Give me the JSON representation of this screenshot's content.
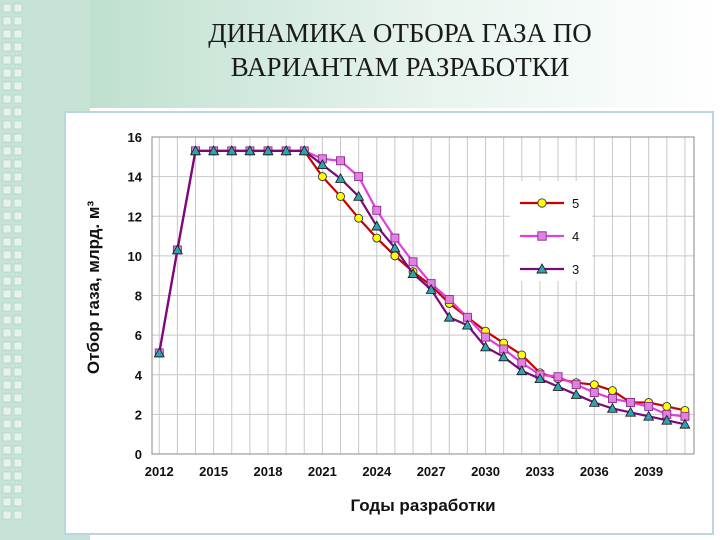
{
  "slide": {
    "title_line1": "ДИНАМИКА ОТБОРА ГАЗА ПО",
    "title_line2": "ВАРИАНТАМ РАЗРАБОТКИ"
  },
  "chart_data": {
    "type": "line",
    "title": "",
    "xlabel": "Годы разработки",
    "ylabel": "Отбор газа, млрд. м³",
    "xlim": [
      2011.6,
      2041.5
    ],
    "ylim": [
      0,
      16
    ],
    "xticks": [
      2012,
      2015,
      2018,
      2021,
      2024,
      2027,
      2030,
      2033,
      2036,
      2039
    ],
    "yticks": [
      0,
      2,
      4,
      6,
      8,
      10,
      12,
      14,
      16
    ],
    "grid": true,
    "legend_position": "top-right",
    "series": [
      {
        "name": "5",
        "color": "#cc0000",
        "marker": "circle",
        "marker_fill": "#ffff00",
        "x": [
          2012,
          2013,
          2014,
          2015,
          2016,
          2017,
          2018,
          2019,
          2020,
          2021,
          2022,
          2023,
          2024,
          2025,
          2026,
          2027,
          2028,
          2029,
          2030,
          2031,
          2032,
          2033,
          2034,
          2035,
          2036,
          2037,
          2038,
          2039,
          2040,
          2041
        ],
        "values": [
          5.1,
          10.3,
          15.3,
          15.3,
          15.3,
          15.3,
          15.3,
          15.3,
          15.3,
          14.0,
          13.0,
          11.9,
          10.9,
          10.0,
          9.2,
          8.5,
          7.6,
          6.9,
          6.2,
          5.6,
          5.0,
          4.1,
          3.8,
          3.6,
          3.5,
          3.2,
          2.6,
          2.6,
          2.4,
          2.2
        ]
      },
      {
        "name": "4",
        "color": "#e040e0",
        "marker": "square",
        "marker_fill": "#e080e0",
        "x": [
          2012,
          2013,
          2014,
          2015,
          2016,
          2017,
          2018,
          2019,
          2020,
          2021,
          2022,
          2023,
          2024,
          2025,
          2026,
          2027,
          2028,
          2029,
          2030,
          2031,
          2032,
          2033,
          2034,
          2035,
          2036,
          2037,
          2038,
          2039,
          2040,
          2041
        ],
        "values": [
          5.1,
          10.3,
          15.3,
          15.3,
          15.3,
          15.3,
          15.3,
          15.3,
          15.3,
          14.9,
          14.8,
          14.0,
          12.3,
          10.9,
          9.7,
          8.6,
          7.8,
          6.9,
          5.9,
          5.3,
          4.6,
          4.0,
          3.9,
          3.5,
          3.1,
          2.8,
          2.6,
          2.4,
          2.0,
          1.9
        ]
      },
      {
        "name": "3",
        "color": "#7a0a7a",
        "marker": "triangle",
        "marker_fill": "#2fa4b0",
        "x": [
          2012,
          2013,
          2014,
          2015,
          2016,
          2017,
          2018,
          2019,
          2020,
          2021,
          2022,
          2023,
          2024,
          2025,
          2026,
          2027,
          2028,
          2029,
          2030,
          2031,
          2032,
          2033,
          2034,
          2035,
          2036,
          2037,
          2038,
          2039,
          2040,
          2041
        ],
        "values": [
          5.1,
          10.3,
          15.3,
          15.3,
          15.3,
          15.3,
          15.3,
          15.3,
          15.3,
          14.6,
          13.9,
          13.0,
          11.5,
          10.4,
          9.1,
          8.3,
          6.9,
          6.5,
          5.4,
          4.9,
          4.2,
          3.8,
          3.4,
          3.0,
          2.6,
          2.3,
          2.1,
          1.9,
          1.7,
          1.5
        ]
      }
    ]
  }
}
